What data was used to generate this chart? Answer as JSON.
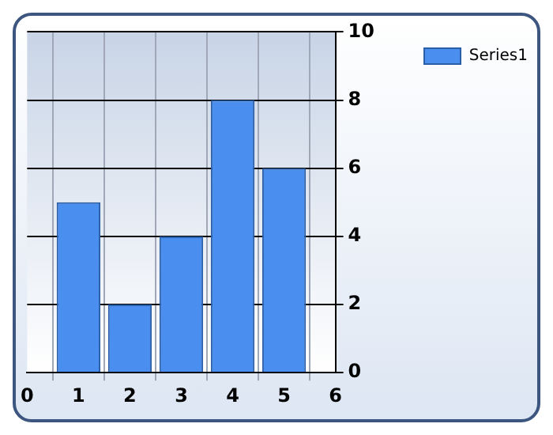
{
  "chart_data": {
    "type": "bar",
    "x": [
      1,
      2,
      3,
      4,
      5
    ],
    "series": [
      {
        "name": "Series1",
        "color": "#4a8ff0",
        "values": [
          5,
          2,
          4,
          8,
          6
        ]
      }
    ],
    "xlim": [
      0,
      6
    ],
    "xticks": [
      0,
      1,
      2,
      3,
      4,
      5,
      6
    ],
    "ylim": [
      0,
      10
    ],
    "yticks": [
      0,
      2,
      4,
      6,
      8,
      10
    ],
    "grid": true,
    "legend": "top right"
  }
}
